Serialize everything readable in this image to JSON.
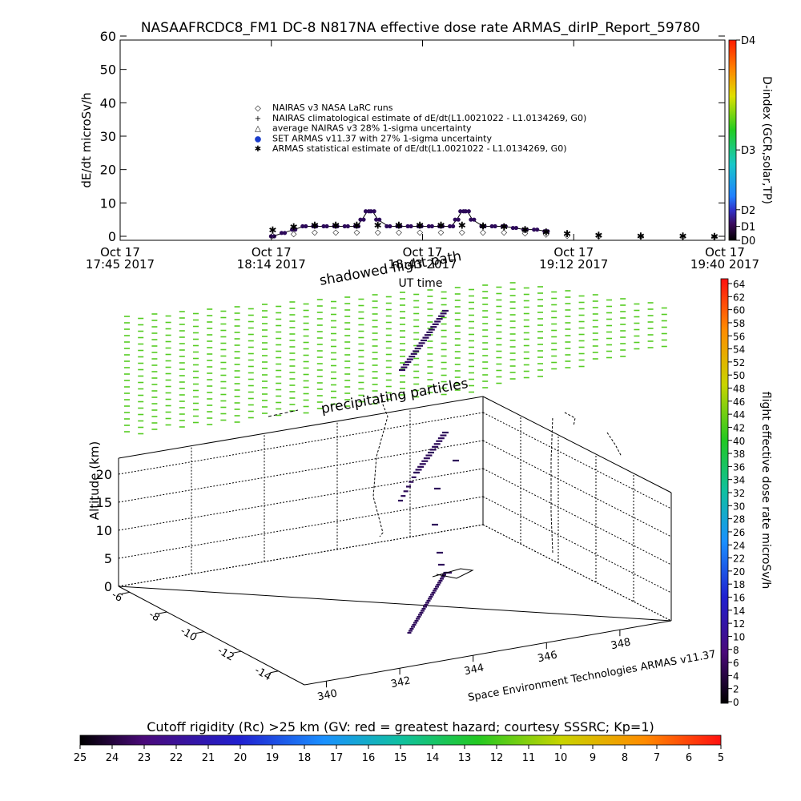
{
  "title": "NASAAFRCDC8_FM1 DC-8   N817NA effective dose rate ARMAS_dirIP_Report_59780",
  "colors": {
    "armas": "#2d0a5a",
    "nairas_line": "#000000",
    "particles": "#55cc22",
    "background": "#ffffff"
  },
  "chart_data": [
    {
      "type": "scatter",
      "ylabel": "dE/dt microSv/h",
      "xlabel": "UT time",
      "ylim": [
        0,
        60
      ],
      "y_ticks": [
        "0",
        "10",
        "20",
        "30",
        "40",
        "50",
        "60"
      ],
      "x_ticks": [
        {
          "line1": "Oct 17",
          "line2": "17:45 2017"
        },
        {
          "line1": "Oct 17",
          "line2": "18:14 2017"
        },
        {
          "line1": "Oct 17",
          "line2": "18:43 2017"
        },
        {
          "line1": "Oct 17",
          "line2": "19:12 2017"
        },
        {
          "line1": "Oct 17",
          "line2": "19:40 2017"
        }
      ],
      "xlim_minutes_utc": [
        1065,
        1180
      ],
      "legend": [
        {
          "symbol": "◇",
          "label": "NAIRAS v3 NASA LaRC runs"
        },
        {
          "symbol": "+",
          "label": "NAIRAS climatological estimate of dE/dt(L1.0021022 - L1.0134269, G0)"
        },
        {
          "symbol": "△",
          "label": "average NAIRAS v3 28% 1-sigma uncertainty"
        },
        {
          "symbol": "●",
          "label": "SET ARMAS v11.37 with 27% 1-sigma uncertainty"
        },
        {
          "symbol": "✱",
          "label": "ARMAS statistical estimate of dE/dt(L1.0021022 - L1.0134269, G0)"
        }
      ],
      "series": [
        {
          "name": "SET ARMAS v11.37 with 27% 1-sigma uncertainty",
          "x_minutes_utc": [
            1094,
            1096,
            1098,
            1100,
            1102,
            1104,
            1106,
            1108,
            1110,
            1111,
            1112,
            1113,
            1114,
            1116,
            1118,
            1120,
            1122,
            1124,
            1126,
            1128,
            1129,
            1130,
            1131,
            1132,
            1134,
            1136,
            1138,
            1140,
            1142,
            1144,
            1146
          ],
          "values": [
            0,
            1,
            2,
            3,
            3,
            3,
            3,
            3,
            3,
            5,
            7.5,
            7.5,
            5,
            3,
            3,
            3,
            3,
            3,
            3,
            3,
            5,
            7.5,
            7.5,
            5,
            3,
            3,
            3,
            2.5,
            2,
            2,
            1.5
          ]
        },
        {
          "name": "ARMAS statistical estimate of dE/dt(L1.0021022 - L1.0134269, G0)",
          "x_minutes_utc": [
            1094,
            1098,
            1102,
            1106,
            1110,
            1114,
            1118,
            1122,
            1126,
            1130,
            1134,
            1138,
            1142,
            1146,
            1150,
            1156,
            1164,
            1172,
            1178
          ],
          "values": [
            2,
            3,
            3.5,
            3.5,
            3.5,
            3.5,
            3.5,
            3.5,
            3.5,
            3.5,
            3.2,
            3,
            2.2,
            1.5,
            1,
            0.5,
            0.3,
            0.2,
            0.1
          ]
        },
        {
          "name": "NAIRAS v3 NASA LaRC runs",
          "x_minutes_utc": [
            1094,
            1098,
            1102,
            1106,
            1110,
            1114,
            1118,
            1122,
            1126,
            1130,
            1134,
            1138,
            1142,
            1146,
            1150,
            1156,
            1164,
            1172,
            1178
          ],
          "values": [
            0.5,
            1,
            1.5,
            1.5,
            1.5,
            1.5,
            1.5,
            1.5,
            1.5,
            1.5,
            1.5,
            1.5,
            1.2,
            0.8,
            0.5,
            0.3,
            0.2,
            0.1,
            0.1
          ]
        }
      ],
      "colorbar": {
        "label": "D-index (GCR,solar,TP)",
        "ticks": [
          "D0",
          "D1",
          "D2",
          "D3",
          "D4"
        ],
        "tick_values": [
          0,
          1,
          2,
          3,
          4
        ],
        "level_values_microSv_h": [
          0,
          1,
          2.2,
          6.5,
          14.4
        ]
      }
    },
    {
      "type": "scatter",
      "zlabel": "Altitude (km)",
      "z_ticks": [
        "0",
        "5",
        "10",
        "15",
        "20"
      ],
      "y_axis_ticks": [
        "-6",
        "-8",
        "-10",
        "-12",
        "-14"
      ],
      "x_axis_ticks": [
        "340",
        "342",
        "344",
        "346",
        "348"
      ],
      "annotations": [
        "shadowed flight path",
        "precipitating particles"
      ],
      "credit": "Space Environment Technologies ARMAS v11.37",
      "colorbar": {
        "label": "flight effective dose rate microSv/h",
        "ticks": [
          "0",
          "2",
          "4",
          "6",
          "8",
          "10",
          "12",
          "14",
          "16",
          "18",
          "20",
          "22",
          "24",
          "26",
          "28",
          "30",
          "32",
          "34",
          "36",
          "38",
          "40",
          "42",
          "44",
          "46",
          "48",
          "50",
          "52",
          "54",
          "56",
          "58",
          "60",
          "62",
          "64"
        ]
      }
    },
    {
      "type": "heatmap",
      "title": "Cutoff rigidity (Rc) >25 km (GV: red = greatest hazard; courtesy SSSRC; Kp=1)",
      "colorbar_ticks": [
        "25",
        "24",
        "23",
        "22",
        "21",
        "20",
        "19",
        "18",
        "17",
        "16",
        "15",
        "14",
        "13",
        "12",
        "11",
        "10",
        "9",
        "8",
        "7",
        "6",
        "5"
      ]
    }
  ]
}
